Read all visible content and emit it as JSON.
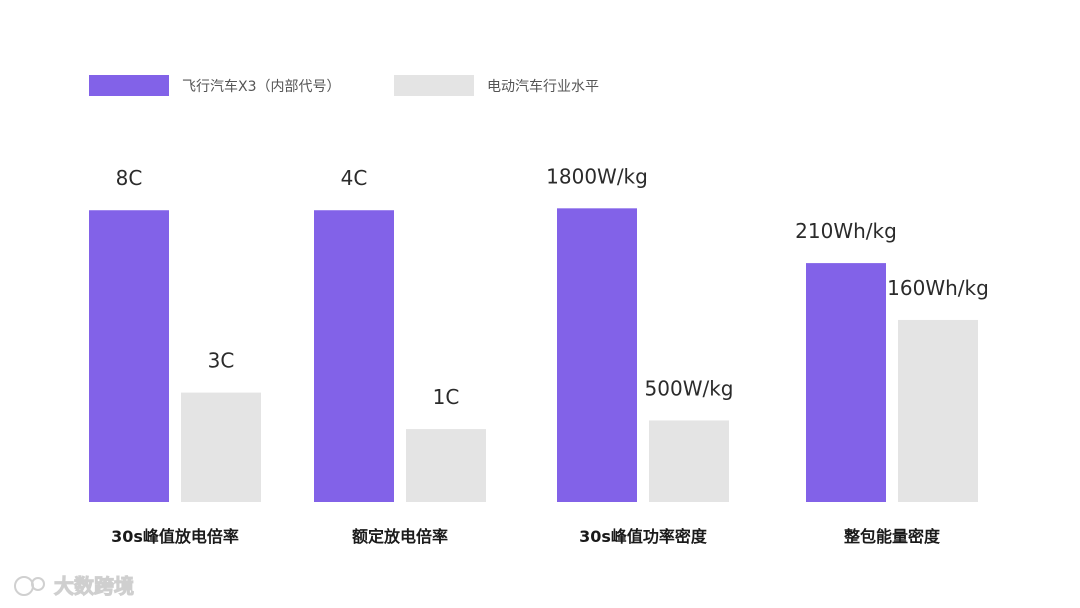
{
  "chart_data": {
    "type": "bar",
    "categories": [
      "30s峰值放电倍率",
      "额定放电倍率",
      "30s峰值功率密度",
      "整包能量密度"
    ],
    "series": [
      {
        "name": "飞行汽车X3（内部代号）",
        "color": "#8262E8",
        "values": [
          8,
          4,
          1800,
          210
        ],
        "labels": [
          "8C",
          "4C",
          "1800W/kg",
          "210Wh/kg"
        ]
      },
      {
        "name": "电动汽车行业水平",
        "color": "#E4E4E4",
        "values": [
          3,
          1,
          500,
          160
        ],
        "labels": [
          "3C",
          "1C",
          "500W/kg",
          "160Wh/kg"
        ]
      }
    ],
    "groups": [
      {
        "unit": "C",
        "max": 10.2
      },
      {
        "unit": "C",
        "max": 5.1
      },
      {
        "unit": "W/kg",
        "max": 2280
      },
      {
        "unit": "Wh/kg",
        "max": 327
      }
    ],
    "legend_position": "top-left",
    "grid": false
  },
  "watermark": {
    "text": "大数跨境"
  }
}
